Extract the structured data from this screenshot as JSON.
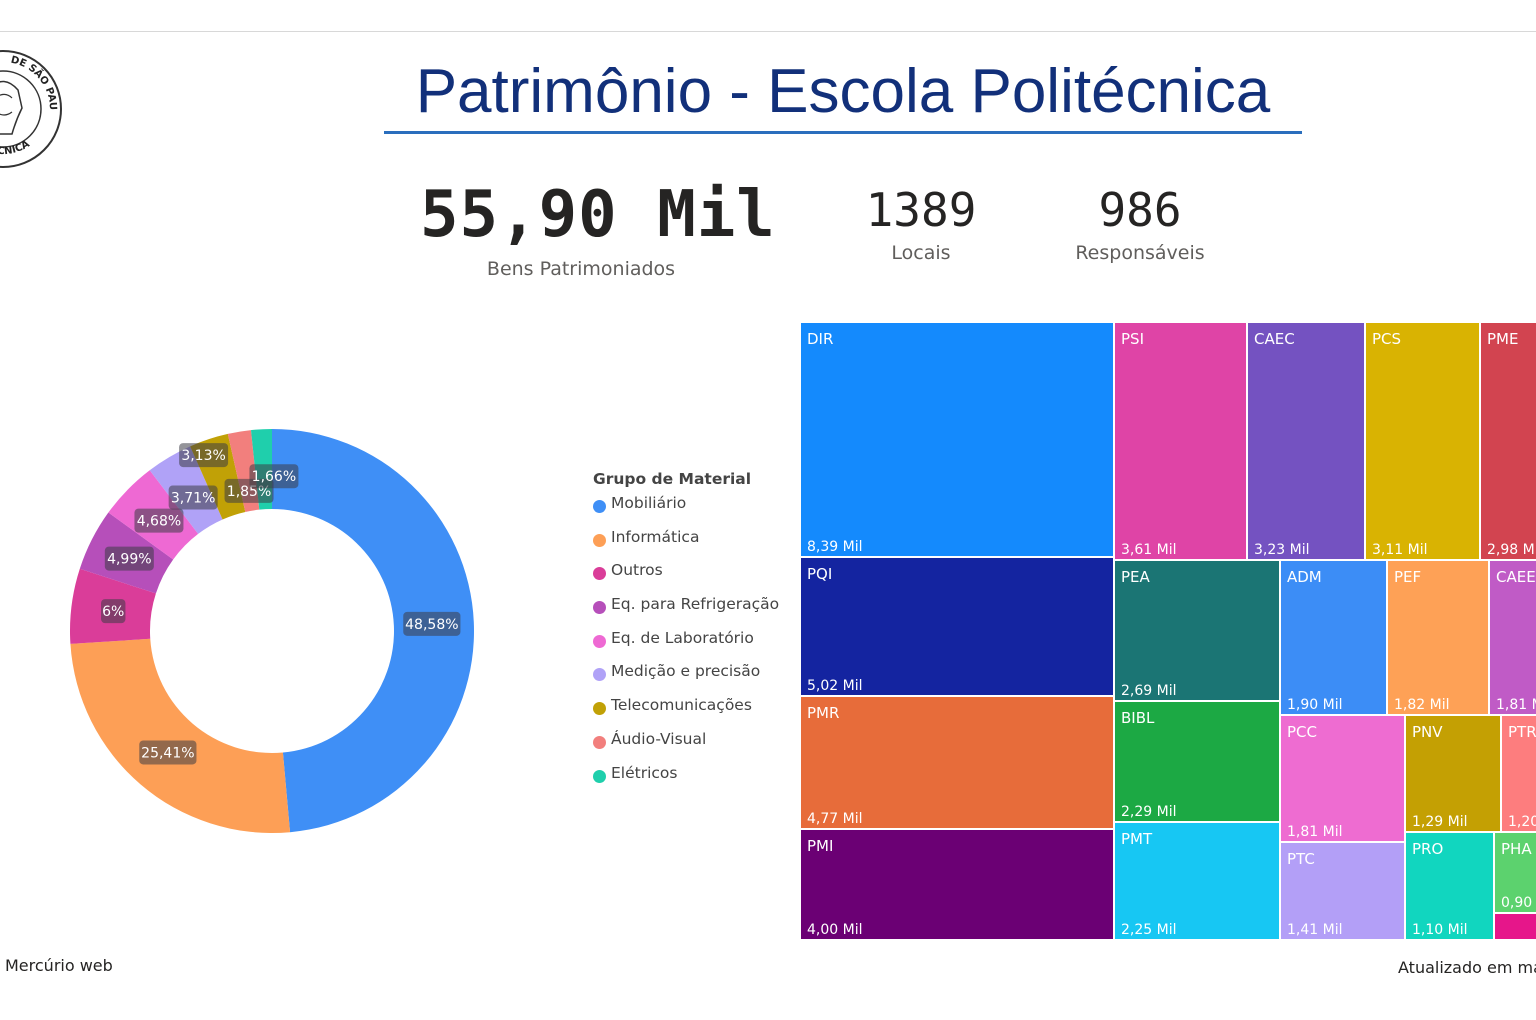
{
  "title": "Patrimônio - Escola Politécnica",
  "logo": {
    "text_top": "DE SÃO PAULO",
    "text_bottom": "POLITÉCNICA"
  },
  "kpis": {
    "bens": {
      "value": "55,90 Mil",
      "label": "Bens Patrimoniados"
    },
    "locais": {
      "value": "1389",
      "label": "Locais"
    },
    "responsaveis": {
      "value": "986",
      "label": "Responsáveis"
    }
  },
  "footer": {
    "source": "Mercúrio web",
    "updated": "Atualizado em ma"
  },
  "chart_data": [
    {
      "type": "pie",
      "style": "donut",
      "legend_title": "Grupo de Material",
      "legend_position": "right",
      "categories": [
        "Mobiliário",
        "Informática",
        "Outros",
        "Eq. para Refrigeração",
        "Eq. de Laboratório",
        "Medição e precisão",
        "Telecomunicações",
        "Áudio-Visual",
        "Elétricos"
      ],
      "values": [
        48.58,
        25.41,
        6.0,
        4.99,
        4.68,
        3.71,
        3.13,
        1.85,
        1.66
      ],
      "data_labels": [
        "48,58%",
        "25,41%",
        "6%",
        "4,99%",
        "4,68%",
        "3,71%",
        "3,13%",
        "1,85%",
        "1,66%"
      ],
      "colors": [
        "#3f8ff6",
        "#fd9f56",
        "#da3d99",
        "#b64fba",
        "#ee69d3",
        "#b0a2f7",
        "#c1a106",
        "#f27f7d",
        "#1fcfac"
      ]
    },
    {
      "type": "treemap",
      "categories": [
        "DIR",
        "PSI",
        "CAEC",
        "PCS",
        "PME",
        "PQI",
        "PEA",
        "ADM",
        "PEF",
        "CAEE",
        "PMR",
        "BIBL",
        "PCC",
        "PNV",
        "PTR",
        "PMI",
        "PMT",
        "PTC",
        "PRO",
        "PHA"
      ],
      "values": [
        8.39,
        3.61,
        3.23,
        3.11,
        2.98,
        5.02,
        2.69,
        1.9,
        1.82,
        1.81,
        4.77,
        2.29,
        1.81,
        1.29,
        1.2,
        4.0,
        2.25,
        1.41,
        1.1,
        0.9
      ],
      "data_labels": [
        "8,39 Mil",
        "3,61 Mil",
        "3,23 Mil",
        "3,11 Mil",
        "2,98 M",
        "5,02 Mil",
        "2,69 Mil",
        "1,90 Mil",
        "1,82 Mil",
        "1,81 M",
        "4,77 Mil",
        "2,29 Mil",
        "1,81 Mil",
        "1,29 Mil",
        "1,20",
        "4,00 Mil",
        "2,25 Mil",
        "1,41 Mil",
        "1,10 Mil",
        "0,90"
      ],
      "colors": [
        "#148afd",
        "#df44a6",
        "#7452c1",
        "#d9b302",
        "#d24450",
        "#1424a0",
        "#1b7574",
        "#3c8df6",
        "#fea156",
        "#c05bc6",
        "#e76c3a",
        "#1ca944",
        "#ee6cd1",
        "#c4a003",
        "#fd7d7e",
        "#6b0074",
        "#17c7f3",
        "#b39ff7",
        "#11d6bf",
        "#5cd26e"
      ]
    }
  ]
}
